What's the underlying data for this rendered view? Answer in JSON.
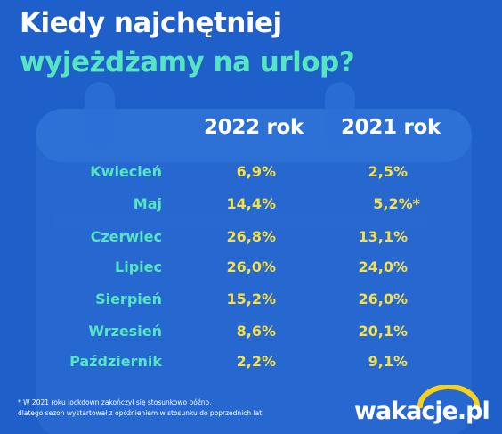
{
  "title": {
    "line1": "Kiedy najchętniej",
    "line2": "wyjeżdżamy na urlop?"
  },
  "chart_data": {
    "type": "table",
    "columns": [
      "2022 rok",
      "2021 rok"
    ],
    "rows": [
      {
        "month": "Kwiecień",
        "v2022": "6,9%",
        "v2021": "2,5%"
      },
      {
        "month": "Maj",
        "v2022": "14,4%",
        "v2021": "5,2%*"
      },
      {
        "month": "Czerwiec",
        "v2022": "26,8%",
        "v2021": "13,1%"
      },
      {
        "month": "Lipiec",
        "v2022": "26,0%",
        "v2021": "24,0%"
      },
      {
        "month": "Sierpień",
        "v2022": "15,2%",
        "v2021": "26,0%"
      },
      {
        "month": "Wrzesień",
        "v2022": "8,6%",
        "v2021": "20,1%"
      },
      {
        "month": "Październik",
        "v2022": "2,2%",
        "v2021": "9,1%"
      }
    ]
  },
  "footnote": {
    "line1": "* W 2021 roku lockdown zakończył się stosunkowo późno,",
    "line2": "dlatego sezon wystartował z opóźnieniem w stosunku do poprzednich lat."
  },
  "logo": {
    "text": "wakacje.pl",
    "icon": "sun-arc-icon"
  },
  "colors": {
    "background": "#1f5fc9",
    "accent_teal": "#55e6c1",
    "value_yellow": "#f5e04a",
    "calendar_shade": "#2c6fd6"
  }
}
